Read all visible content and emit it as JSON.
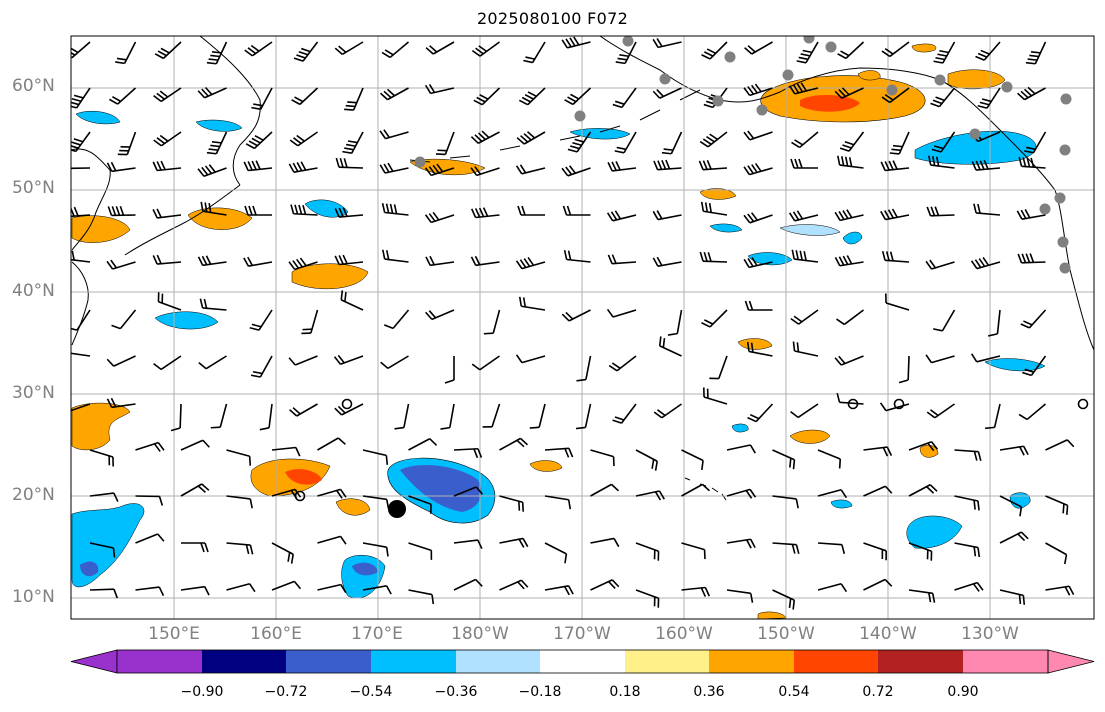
{
  "title": "2025080100 F072",
  "axes": {
    "lat_labels": [
      "60°N",
      "50°N",
      "40°N",
      "30°N",
      "20°N",
      "10°N"
    ],
    "lon_labels": [
      "150°E",
      "160°E",
      "170°E",
      "180°W",
      "170°W",
      "160°W",
      "150°W",
      "140°W",
      "130°W"
    ]
  },
  "colorbar": {
    "ticks": [
      "−0.90",
      "−0.72",
      "−0.54",
      "−0.36",
      "−0.18",
      "0.18",
      "0.36",
      "0.54",
      "0.72",
      "0.90"
    ],
    "colors": [
      "#9932cc",
      "#000080",
      "#3a5fcd",
      "#00bfff",
      "#b0e2ff",
      "#ffffff",
      "#fff08a",
      "#ffa500",
      "#ff4500",
      "#b22222",
      "#ff88b0"
    ]
  },
  "contour_colors": {
    "pos_1": "#ffa500",
    "pos_2": "#ff4500",
    "neg_1": "#00bfff",
    "neg_2": "#3a5fcd"
  },
  "markers": {
    "gray_dots": "#808080",
    "storm_center": "#000000"
  }
}
